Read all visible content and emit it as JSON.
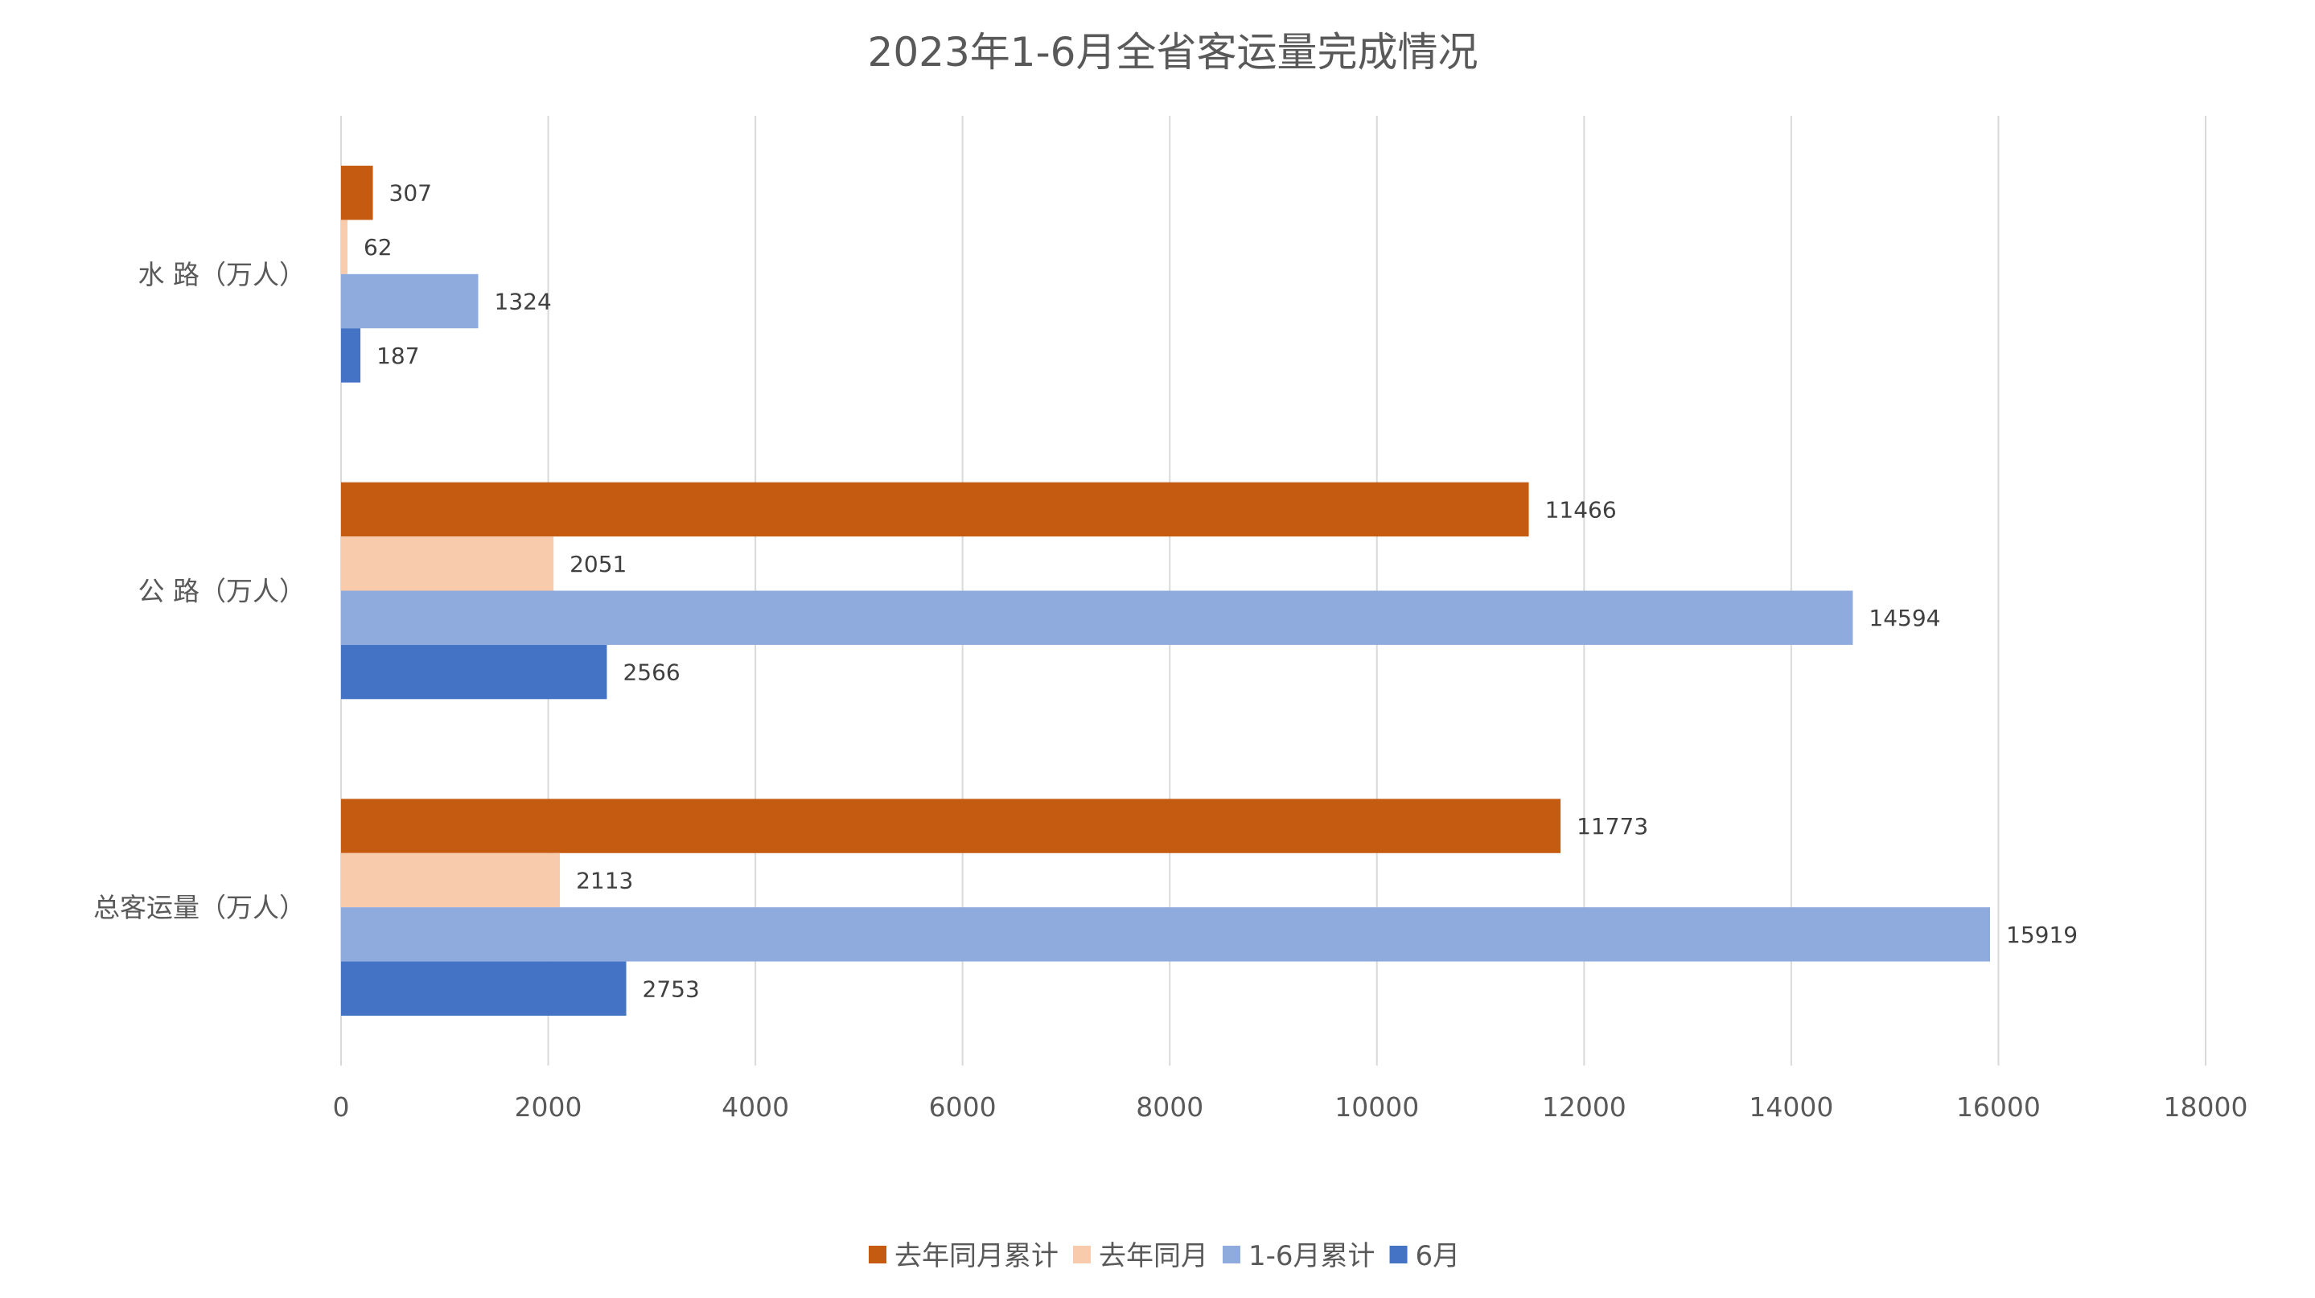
{
  "chart_data": {
    "type": "bar",
    "orientation": "horizontal",
    "title": "2023年1-6月全省客运量完成情况",
    "categories": [
      "水 路（万人）",
      "公 路（万人）",
      "总客运量（万人）"
    ],
    "series": [
      {
        "name": "去年同月累计",
        "color": "#C55A11",
        "values": [
          307,
          11466,
          11773
        ]
      },
      {
        "name": "去年同月",
        "color": "#F8CBAD",
        "values": [
          62,
          2051,
          2113
        ]
      },
      {
        "name": "1-6月累计",
        "color": "#8FAADC",
        "values": [
          1324,
          14594,
          15919
        ]
      },
      {
        "name": "6月",
        "color": "#4472C4",
        "values": [
          187,
          2566,
          2753
        ]
      }
    ],
    "xlim": [
      0,
      18000
    ],
    "xticks": [
      "0",
      "2000",
      "4000",
      "6000",
      "8000",
      "10000",
      "12000",
      "14000",
      "16000",
      "18000"
    ],
    "xlabel": "",
    "ylabel": "",
    "grid": "vertical",
    "data_labels": true,
    "legend": "bottom"
  }
}
